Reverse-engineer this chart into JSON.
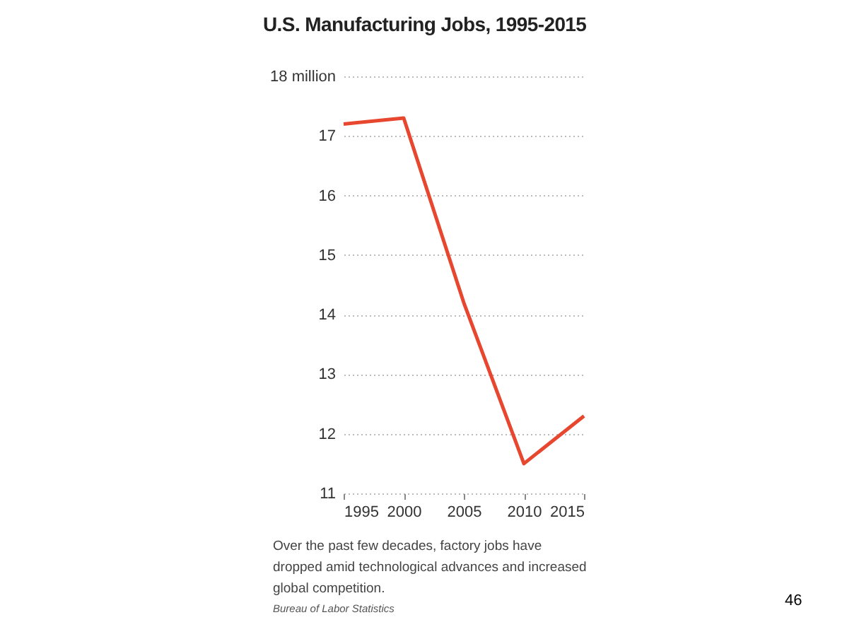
{
  "chart_data": {
    "type": "line",
    "title": "U.S. Manufacturing Jobs, 1995-2015",
    "x": [
      1995,
      2000,
      2005,
      2010,
      2015
    ],
    "series": [
      {
        "color": "#e8472f",
        "values": [
          17.2,
          17.3,
          14.2,
          11.5,
          12.3
        ]
      }
    ],
    "xlim": [
      1995,
      2015
    ],
    "xticks": [
      1995,
      2000,
      2005,
      2010,
      2015
    ],
    "ylim": [
      11,
      18
    ],
    "yticks": [
      11,
      12,
      13,
      14,
      15,
      16,
      17,
      {
        "value": 18,
        "label": "18 million"
      }
    ],
    "grid": "y",
    "marker": "none",
    "line_style": "solid",
    "annotations": [
      "Over the past few decades, factory jobs have dropped amid technological advances and increased global competition.",
      "Bureau of Labor Statistics",
      "46"
    ]
  }
}
